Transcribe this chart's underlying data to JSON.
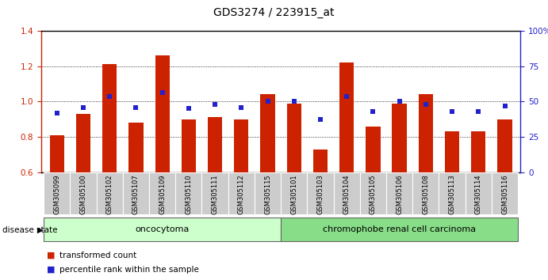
{
  "title": "GDS3274 / 223915_at",
  "samples": [
    "GSM305099",
    "GSM305100",
    "GSM305102",
    "GSM305107",
    "GSM305109",
    "GSM305110",
    "GSM305111",
    "GSM305112",
    "GSM305115",
    "GSM305101",
    "GSM305103",
    "GSM305104",
    "GSM305105",
    "GSM305106",
    "GSM305108",
    "GSM305113",
    "GSM305114",
    "GSM305116"
  ],
  "red_values": [
    0.81,
    0.93,
    1.21,
    0.88,
    1.26,
    0.9,
    0.91,
    0.9,
    1.04,
    0.99,
    0.73,
    1.22,
    0.86,
    0.99,
    1.04,
    0.83,
    0.83,
    0.9
  ],
  "blue_values": [
    0.935,
    0.965,
    1.03,
    0.965,
    1.05,
    0.96,
    0.985,
    0.965,
    1.0,
    1.0,
    0.9,
    1.03,
    0.945,
    1.0,
    0.985,
    0.945,
    0.945,
    0.975
  ],
  "group1_label": "oncocytoma",
  "group1_count": 9,
  "group2_label": "chromophobe renal cell carcinoma",
  "group2_count": 9,
  "disease_state_label": "disease state",
  "ylim_left": [
    0.6,
    1.4
  ],
  "ylim_right": [
    0,
    100
  ],
  "yticks_left": [
    0.6,
    0.8,
    1.0,
    1.2,
    1.4
  ],
  "yticks_right": [
    0,
    25,
    50,
    75,
    100
  ],
  "ytick_labels_right": [
    "0",
    "25",
    "50",
    "75",
    "100%"
  ],
  "bar_color": "#cc2200",
  "dot_color": "#2222cc",
  "group1_bg": "#ccffcc",
  "group2_bg": "#88dd88",
  "tick_bg": "#cccccc",
  "bar_width": 0.55
}
